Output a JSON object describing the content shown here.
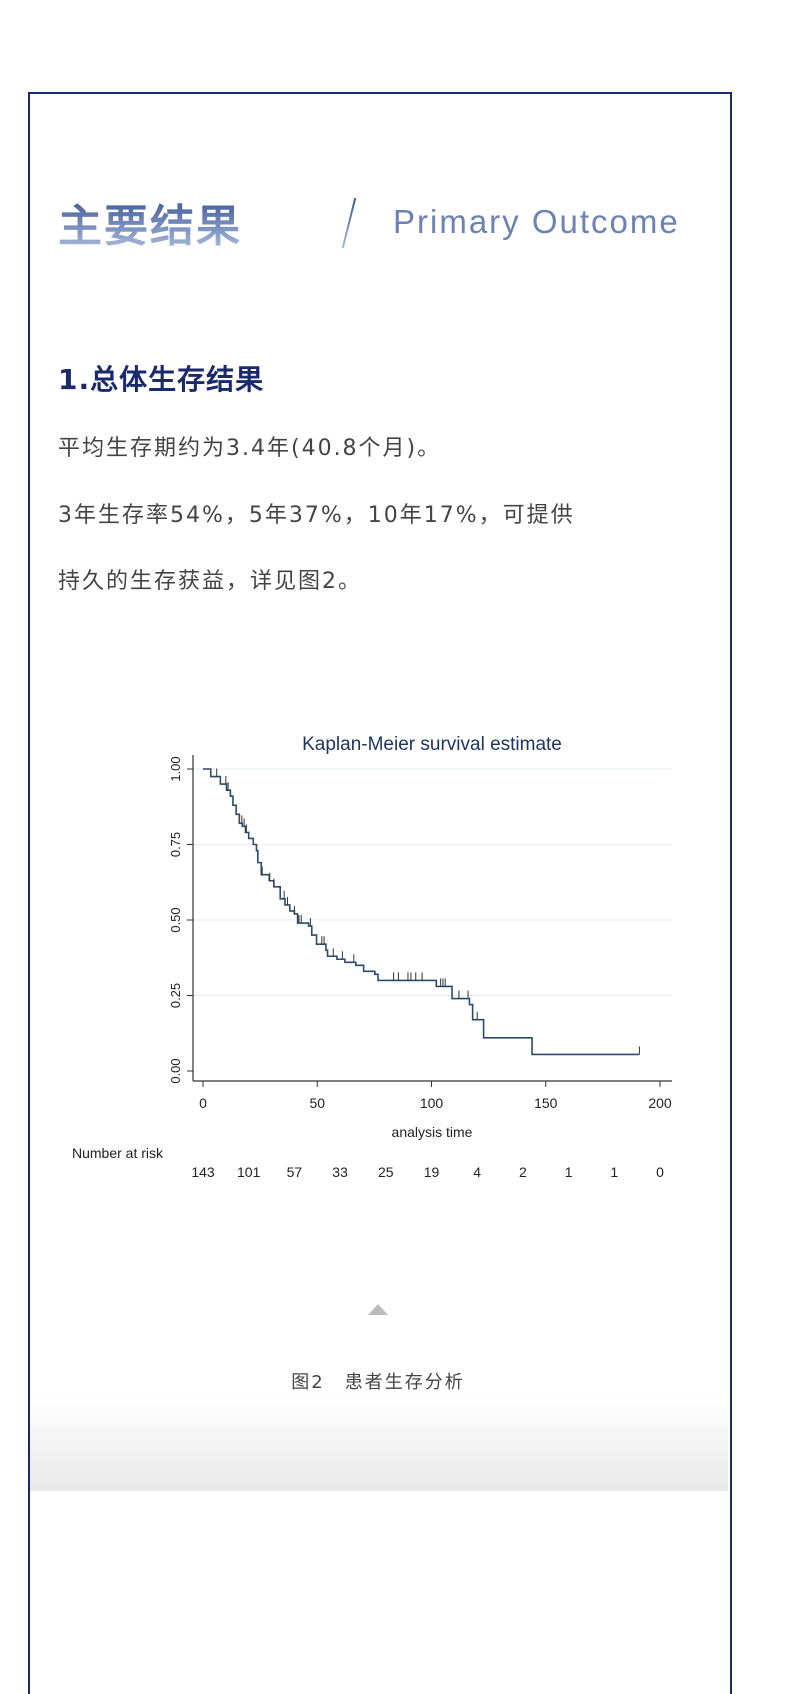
{
  "header": {
    "title_cn": "主要结果",
    "title_en": "Primary Outcome"
  },
  "section": {
    "title": "1.总体生存结果",
    "lines": [
      "平均生存期约为3.4年(40.8个月)。",
      "3年生存率54%，5年37%，10年17%，可提供",
      "持久的生存获益，详见图2。"
    ]
  },
  "figure": {
    "caption": "图2　患者生存分析"
  },
  "colors": {
    "frame": "#1a2a6c",
    "curve": "#2a4a6e",
    "title": "#1e3560"
  },
  "chart_data": {
    "type": "line",
    "subtype": "kaplan-meier step",
    "title": "Kaplan-Meier survival estimate",
    "xlabel": "analysis time",
    "ylabel": "",
    "xlim": [
      0,
      200
    ],
    "ylim": [
      0,
      1
    ],
    "xticks": [
      "0",
      "50",
      "100",
      "150",
      "200"
    ],
    "yticks": [
      "0.00",
      "0.25",
      "0.50",
      "0.75",
      "1.00"
    ],
    "grid": "horizontal",
    "steps": [
      [
        0,
        1.0
      ],
      [
        3.4,
        0.975
      ],
      [
        7.6,
        0.95
      ],
      [
        10.3,
        0.93
      ],
      [
        12,
        0.91
      ],
      [
        13.1,
        0.88
      ],
      [
        14.5,
        0.85
      ],
      [
        15.9,
        0.82
      ],
      [
        17.2,
        0.81
      ],
      [
        18.6,
        0.79
      ],
      [
        20,
        0.77
      ],
      [
        22,
        0.75
      ],
      [
        23.4,
        0.73
      ],
      [
        24,
        0.69
      ],
      [
        25.5,
        0.65
      ],
      [
        29,
        0.63
      ],
      [
        31,
        0.61
      ],
      [
        33.8,
        0.57
      ],
      [
        35.9,
        0.55
      ],
      [
        38,
        0.53
      ],
      [
        40,
        0.52
      ],
      [
        41.4,
        0.49
      ],
      [
        46.2,
        0.48
      ],
      [
        47.6,
        0.45
      ],
      [
        49.7,
        0.42
      ],
      [
        53.8,
        0.4
      ],
      [
        54.5,
        0.38
      ],
      [
        58.6,
        0.37
      ],
      [
        62.1,
        0.36
      ],
      [
        66.9,
        0.35
      ],
      [
        70.3,
        0.33
      ],
      [
        75.2,
        0.32
      ],
      [
        76.6,
        0.3
      ],
      [
        102.1,
        0.28
      ],
      [
        109,
        0.24
      ],
      [
        116.6,
        0.22
      ],
      [
        118,
        0.17
      ],
      [
        122.8,
        0.11
      ],
      [
        144,
        0.055
      ]
    ],
    "end_time": 191,
    "censored": [
      6,
      10,
      11,
      17,
      18,
      19,
      25.9,
      29.2,
      31,
      35.5,
      37,
      40,
      42,
      43,
      47,
      52,
      53,
      57,
      61,
      66,
      83.4,
      85.5,
      89.7,
      91,
      93.1,
      95.9,
      104,
      105,
      106,
      112,
      116,
      120,
      191
    ],
    "risk_table": {
      "label": "Number at risk",
      "times": [
        0,
        20,
        40,
        60,
        80,
        100,
        120,
        140,
        160,
        180,
        200
      ],
      "counts": [
        "143",
        "101",
        "57",
        "33",
        "25",
        "19",
        "4",
        "2",
        "1",
        "1",
        "0"
      ]
    }
  }
}
